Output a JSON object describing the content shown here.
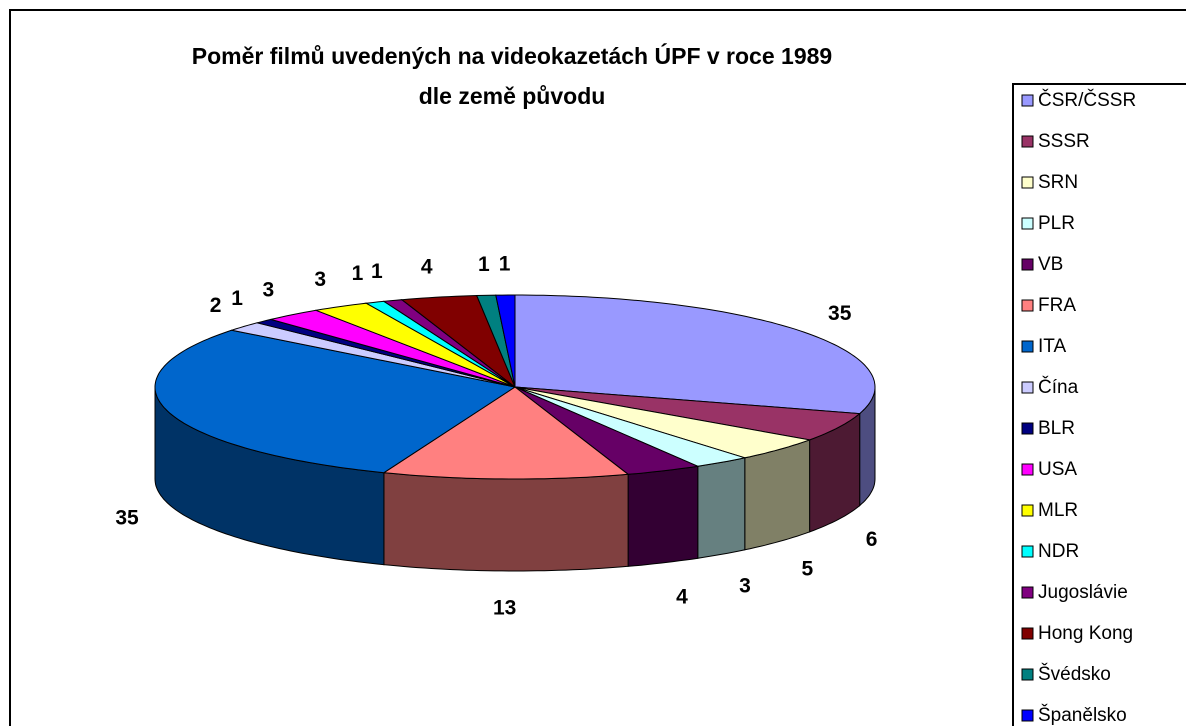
{
  "chart_data": {
    "type": "pie3d",
    "title": [
      "Poměr filmů uvedených na videokazetách ÚPF v roce 1989",
      "dle země původu"
    ],
    "categories": [
      "ČSR/ČSSR",
      "SSSR",
      "SRN",
      "PLR",
      "VB",
      "FRA",
      "ITA",
      "Čína",
      "BLR",
      "USA",
      "MLR",
      "NDR",
      "Jugoslávie",
      "Hong Kong",
      "Švédsko",
      "Španělsko"
    ],
    "values": [
      35,
      6,
      5,
      3,
      4,
      13,
      35,
      2,
      1,
      3,
      3,
      1,
      1,
      4,
      1,
      1
    ],
    "colors": [
      "#9999ff",
      "#993366",
      "#ffffcc",
      "#ccffff",
      "#660066",
      "#ff8080",
      "#0066cc",
      "#ccccff",
      "#000080",
      "#ff00ff",
      "#ffff00",
      "#00ffff",
      "#800080",
      "#800000",
      "#008080",
      "#0000ff"
    ],
    "legend": "right"
  }
}
